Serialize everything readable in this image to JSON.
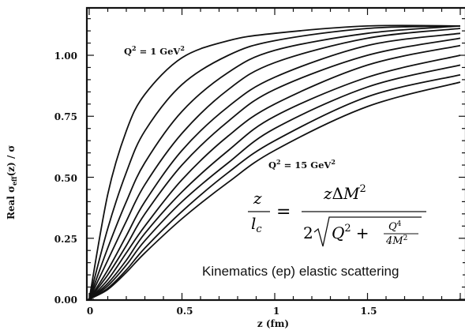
{
  "chart_data": {
    "type": "line",
    "xlabel_text": "z (fm)",
    "ylabel_text": "Real σ",
    "ylabel_sub": "eff",
    "ylabel_rest": "(z) / σ",
    "xlim": [
      0,
      2
    ],
    "ylim": [
      0,
      1.25
    ],
    "x_ticks": [
      "0",
      "0.5",
      "1",
      "1.5"
    ],
    "y_ticks": [
      "0.00",
      "0.25",
      "0.50",
      "0.75",
      "1.00"
    ],
    "annotations": {
      "top": {
        "prefix": "Q",
        "sup": "2",
        "mid": " = 1 GeV",
        "sup2": "2"
      },
      "bottom": {
        "prefix": "Q",
        "sup": "2",
        "mid": " = 15 GeV",
        "sup2": "2"
      }
    },
    "caption": "Kinematics (ep)  elastic scattering",
    "series": [
      {
        "values": [
          [
            0,
            0
          ],
          [
            0.1,
            0.43
          ],
          [
            0.2,
            0.69
          ],
          [
            0.3,
            0.84
          ],
          [
            0.5,
            0.99
          ],
          [
            0.75,
            1.06
          ],
          [
            1,
            1.09
          ],
          [
            1.5,
            1.12
          ],
          [
            2,
            1.12
          ]
        ]
      },
      {
        "values": [
          [
            0,
            0
          ],
          [
            0.1,
            0.29
          ],
          [
            0.2,
            0.52
          ],
          [
            0.3,
            0.69
          ],
          [
            0.5,
            0.88
          ],
          [
            0.75,
            1.0
          ],
          [
            1,
            1.06
          ],
          [
            1.5,
            1.11
          ],
          [
            2,
            1.12
          ]
        ]
      },
      {
        "values": [
          [
            0,
            0
          ],
          [
            0.1,
            0.21
          ],
          [
            0.2,
            0.4
          ],
          [
            0.3,
            0.56
          ],
          [
            0.5,
            0.77
          ],
          [
            0.75,
            0.93
          ],
          [
            1,
            1.02
          ],
          [
            1.5,
            1.09
          ],
          [
            2,
            1.12
          ]
        ]
      },
      {
        "values": [
          [
            0,
            0
          ],
          [
            0.1,
            0.16
          ],
          [
            0.2,
            0.32
          ],
          [
            0.3,
            0.47
          ],
          [
            0.5,
            0.68
          ],
          [
            0.75,
            0.86
          ],
          [
            1,
            0.97
          ],
          [
            1.5,
            1.07
          ],
          [
            2,
            1.11
          ]
        ]
      },
      {
        "values": [
          [
            0,
            0
          ],
          [
            0.1,
            0.12
          ],
          [
            0.2,
            0.26
          ],
          [
            0.3,
            0.4
          ],
          [
            0.5,
            0.61
          ],
          [
            0.75,
            0.79
          ],
          [
            1,
            0.91
          ],
          [
            1.5,
            1.04
          ],
          [
            2,
            1.09
          ]
        ]
      },
      {
        "values": [
          [
            0,
            0
          ],
          [
            0.1,
            0.1
          ],
          [
            0.2,
            0.22
          ],
          [
            0.3,
            0.35
          ],
          [
            0.5,
            0.55
          ],
          [
            0.75,
            0.73
          ],
          [
            1,
            0.86
          ],
          [
            1.5,
            1.0
          ],
          [
            2,
            1.07
          ]
        ]
      },
      {
        "values": [
          [
            0,
            0
          ],
          [
            0.1,
            0.08
          ],
          [
            0.2,
            0.19
          ],
          [
            0.3,
            0.3
          ],
          [
            0.5,
            0.49
          ],
          [
            0.75,
            0.67
          ],
          [
            1,
            0.8
          ],
          [
            1.5,
            0.96
          ],
          [
            2,
            1.04
          ]
        ]
      },
      {
        "values": [
          [
            0,
            0
          ],
          [
            0.1,
            0.065
          ],
          [
            0.2,
            0.16
          ],
          [
            0.3,
            0.27
          ],
          [
            0.5,
            0.44
          ],
          [
            0.75,
            0.61
          ],
          [
            1,
            0.75
          ],
          [
            1.5,
            0.91
          ],
          [
            2,
            1.0
          ]
        ]
      },
      {
        "values": [
          [
            0,
            0
          ],
          [
            0.1,
            0.055
          ],
          [
            0.2,
            0.14
          ],
          [
            0.3,
            0.24
          ],
          [
            0.5,
            0.4
          ],
          [
            0.75,
            0.56
          ],
          [
            1,
            0.7
          ],
          [
            1.5,
            0.87
          ],
          [
            2,
            0.96
          ]
        ]
      },
      {
        "values": [
          [
            0,
            0
          ],
          [
            0.1,
            0.045
          ],
          [
            0.2,
            0.12
          ],
          [
            0.3,
            0.21
          ],
          [
            0.5,
            0.36
          ],
          [
            0.75,
            0.52
          ],
          [
            1,
            0.65
          ],
          [
            1.5,
            0.83
          ],
          [
            2,
            0.92
          ]
        ]
      },
      {
        "values": [
          [
            0,
            0
          ],
          [
            0.1,
            0.04
          ],
          [
            0.2,
            0.11
          ],
          [
            0.3,
            0.19
          ],
          [
            0.5,
            0.33
          ],
          [
            0.75,
            0.48
          ],
          [
            1,
            0.61
          ],
          [
            1.5,
            0.79
          ],
          [
            2,
            0.89
          ]
        ]
      }
    ]
  },
  "formula": {
    "lhs_num": "z",
    "lhs_den_base": "l",
    "lhs_den_sub": "c",
    "equals": "=",
    "num_z": "z",
    "num_delta": "Δ",
    "num_m": "M",
    "num_exp": "2",
    "den_coef": "2",
    "den_q": "Q",
    "den_q_exp": "2",
    "den_plus": "+",
    "inner_num": "Q",
    "inner_num_exp": "4",
    "inner_den": "4M",
    "inner_den_exp": "2"
  }
}
